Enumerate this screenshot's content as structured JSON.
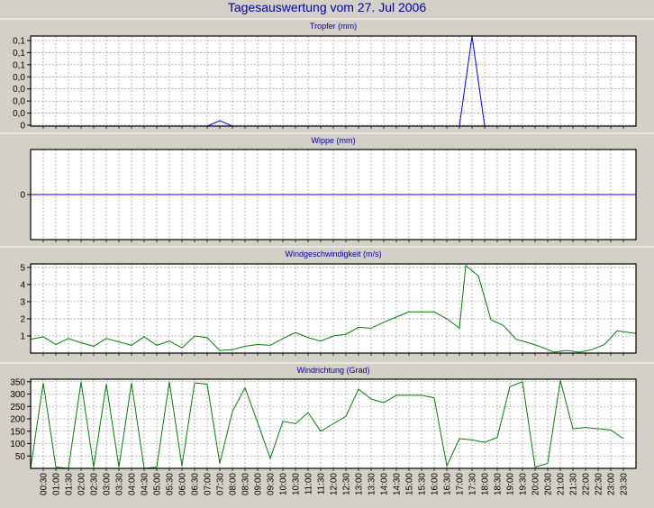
{
  "title": "Tagesauswertung vom 27. Jul 2006",
  "colors": {
    "background": "#d4d0c8",
    "plot_background": "#ffffff",
    "grid": "#808080",
    "title": "#0000a0",
    "rain": "#0000ff",
    "wind": "#008000"
  },
  "chart_data": [
    {
      "type": "line",
      "title": "Tropfer (mm)",
      "y_ticklabels": [
        "0,1",
        "0,1",
        "0,1",
        "0,0",
        "0,0",
        "0,0",
        "0,0",
        "0"
      ],
      "ylim": [
        0,
        0.1
      ],
      "grid": true,
      "series": [
        {
          "color": "#0000ff",
          "points": [
            [
              "07:00",
              0
            ],
            [
              "07:30",
              0.006
            ],
            [
              "08:00",
              0
            ],
            [
              "17:00",
              0
            ],
            [
              "17:30",
              0.1
            ],
            [
              "18:00",
              0
            ]
          ]
        }
      ]
    },
    {
      "type": "line",
      "title": "Wippe (mm)",
      "y_ticklabels": [
        "0"
      ],
      "ylim": [
        -1,
        1
      ],
      "grid": true,
      "series": [
        {
          "color": "#0000ff",
          "points": [
            [
              "00:00",
              0
            ],
            [
              "23:59",
              0
            ]
          ]
        }
      ]
    },
    {
      "type": "line",
      "title": "Windgeschwindigkeit (m/s)",
      "y_ticklabels": [
        "5",
        "4",
        "3",
        "2",
        "1"
      ],
      "ylim": [
        0,
        5.2
      ],
      "grid": true,
      "series": [
        {
          "color": "#008000",
          "points": [
            [
              "00:00",
              0.8
            ],
            [
              "00:30",
              0.95
            ],
            [
              "01:00",
              0.5
            ],
            [
              "01:30",
              0.85
            ],
            [
              "02:00",
              0.6
            ],
            [
              "02:30",
              0.4
            ],
            [
              "03:00",
              0.85
            ],
            [
              "03:30",
              0.65
            ],
            [
              "04:00",
              0.45
            ],
            [
              "04:30",
              0.95
            ],
            [
              "05:00",
              0.45
            ],
            [
              "05:30",
              0.7
            ],
            [
              "06:00",
              0.3
            ],
            [
              "06:30",
              1.0
            ],
            [
              "07:00",
              0.9
            ],
            [
              "07:30",
              0.15
            ],
            [
              "08:00",
              0.2
            ],
            [
              "08:30",
              0.4
            ],
            [
              "09:00",
              0.5
            ],
            [
              "09:30",
              0.45
            ],
            [
              "10:00",
              0.85
            ],
            [
              "10:30",
              1.2
            ],
            [
              "11:00",
              0.9
            ],
            [
              "11:30",
              0.7
            ],
            [
              "12:00",
              1.0
            ],
            [
              "12:30",
              1.1
            ],
            [
              "13:00",
              1.5
            ],
            [
              "13:30",
              1.45
            ],
            [
              "14:00",
              1.8
            ],
            [
              "14:30",
              2.1
            ],
            [
              "15:00",
              2.4
            ],
            [
              "15:30",
              2.4
            ],
            [
              "16:00",
              2.4
            ],
            [
              "16:30",
              2.0
            ],
            [
              "17:00",
              1.45
            ],
            [
              "17:15",
              5.1
            ],
            [
              "17:45",
              4.5
            ],
            [
              "18:15",
              1.95
            ],
            [
              "18:45",
              1.6
            ],
            [
              "19:15",
              0.8
            ],
            [
              "19:45",
              0.6
            ],
            [
              "20:15",
              0.35
            ],
            [
              "20:45",
              0.05
            ],
            [
              "21:15",
              0.15
            ],
            [
              "21:45",
              0.05
            ],
            [
              "22:15",
              0.2
            ],
            [
              "22:45",
              0.5
            ],
            [
              "23:15",
              1.3
            ],
            [
              "23:59",
              1.15
            ]
          ]
        }
      ]
    },
    {
      "type": "line",
      "title": "Windrichtung (Grad)",
      "y_ticklabels": [
        "350",
        "300",
        "250",
        "200",
        "150",
        "100",
        "50"
      ],
      "ylim": [
        0,
        360
      ],
      "grid": true,
      "x_ticklabels": [
        "00:30",
        "01:00",
        "01:30",
        "02:00",
        "02:30",
        "03:00",
        "03:30",
        "04:00",
        "04:30",
        "05:00",
        "05:30",
        "06:00",
        "06:30",
        "07:00",
        "07:30",
        "08:00",
        "08:30",
        "09:00",
        "09:30",
        "10:00",
        "10:30",
        "11:00",
        "11:30",
        "12:00",
        "12:30",
        "13:00",
        "13:30",
        "14:00",
        "14:30",
        "15:00",
        "15:30",
        "16:00",
        "16:30",
        "17:00",
        "17:30",
        "18:00",
        "18:30",
        "19:00",
        "19:30",
        "20:00",
        "20:30",
        "21:00",
        "21:30",
        "22:00",
        "22:30",
        "23:00",
        "23:30"
      ],
      "series": [
        {
          "color": "#008000",
          "points": [
            [
              "00:00",
              0
            ],
            [
              "00:30",
              345
            ],
            [
              "01:00",
              5
            ],
            [
              "01:30",
              0
            ],
            [
              "02:00",
              350
            ],
            [
              "02:30",
              5
            ],
            [
              "03:00",
              340
            ],
            [
              "03:30",
              5
            ],
            [
              "04:00",
              345
            ],
            [
              "04:30",
              0
            ],
            [
              "05:00",
              5
            ],
            [
              "05:30",
              350
            ],
            [
              "06:00",
              10
            ],
            [
              "06:30",
              345
            ],
            [
              "07:00",
              340
            ],
            [
              "07:30",
              20
            ],
            [
              "08:00",
              230
            ],
            [
              "08:30",
              325
            ],
            [
              "09:00",
              185
            ],
            [
              "09:30",
              40
            ],
            [
              "10:00",
              190
            ],
            [
              "10:30",
              180
            ],
            [
              "11:00",
              225
            ],
            [
              "11:30",
              150
            ],
            [
              "12:00",
              180
            ],
            [
              "12:30",
              210
            ],
            [
              "13:00",
              320
            ],
            [
              "13:30",
              280
            ],
            [
              "14:00",
              265
            ],
            [
              "14:30",
              295
            ],
            [
              "15:00",
              295
            ],
            [
              "15:30",
              295
            ],
            [
              "16:00",
              285
            ],
            [
              "16:30",
              10
            ],
            [
              "17:00",
              120
            ],
            [
              "17:30",
              115
            ],
            [
              "18:00",
              105
            ],
            [
              "18:30",
              125
            ],
            [
              "19:00",
              330
            ],
            [
              "19:30",
              350
            ],
            [
              "20:00",
              5
            ],
            [
              "20:30",
              20
            ],
            [
              "21:00",
              355
            ],
            [
              "21:30",
              160
            ],
            [
              "22:00",
              165
            ],
            [
              "22:30",
              160
            ],
            [
              "23:00",
              155
            ],
            [
              "23:30",
              120
            ]
          ]
        }
      ]
    }
  ]
}
